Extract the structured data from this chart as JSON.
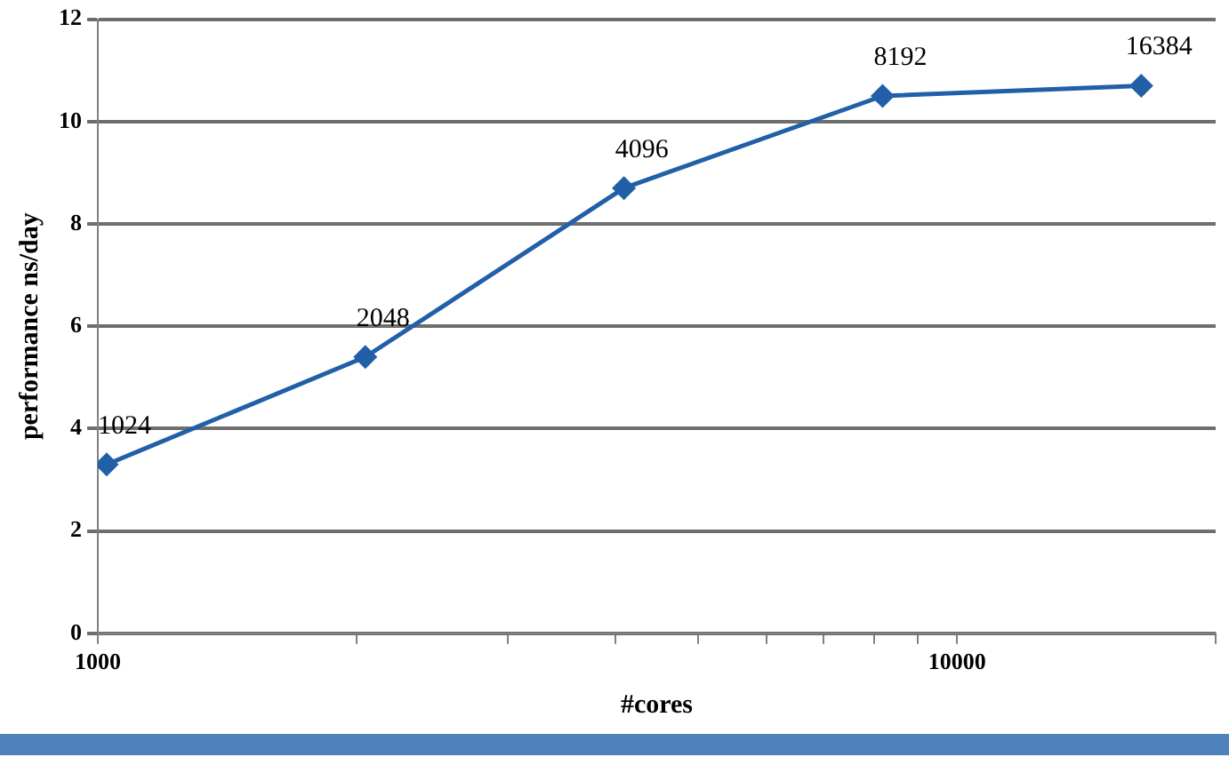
{
  "chart_data": {
    "type": "line",
    "xlabel": "#cores",
    "ylabel": "performance ns/day",
    "x": [
      1024,
      2048,
      4096,
      8192,
      16384
    ],
    "series": [
      {
        "color": "#2160a8",
        "values": [
          3.3,
          5.4,
          8.7,
          10.5,
          10.7
        ]
      }
    ],
    "annotations": [
      {
        "text": "1024",
        "x": 1024,
        "y": 3.3
      },
      {
        "text": "2048",
        "x": 2048,
        "y": 5.4
      },
      {
        "text": "4096",
        "x": 4096,
        "y": 8.7
      },
      {
        "text": "8192",
        "x": 8192,
        "y": 10.5
      },
      {
        "text": "16384",
        "x": 16384,
        "y": 10.7
      }
    ],
    "log": "x",
    "xlim": [
      1000,
      20000
    ],
    "xticks": [
      1000,
      {
        "value": 2000,
        "label": null
      },
      {
        "value": 3000,
        "label": null
      },
      {
        "value": 4000,
        "label": null
      },
      {
        "value": 5000,
        "label": null
      },
      {
        "value": 6000,
        "label": null
      },
      {
        "value": 7000,
        "label": null
      },
      {
        "value": 8000,
        "label": null
      },
      {
        "value": 9000,
        "label": null
      },
      10000,
      {
        "value": 20000,
        "label": null
      }
    ],
    "ylim": [
      0,
      12
    ],
    "yticks": [
      0,
      2,
      4,
      6,
      8,
      10,
      12
    ],
    "grid": "y",
    "legend": false,
    "marker": "diamond",
    "line_style": "solid"
  }
}
